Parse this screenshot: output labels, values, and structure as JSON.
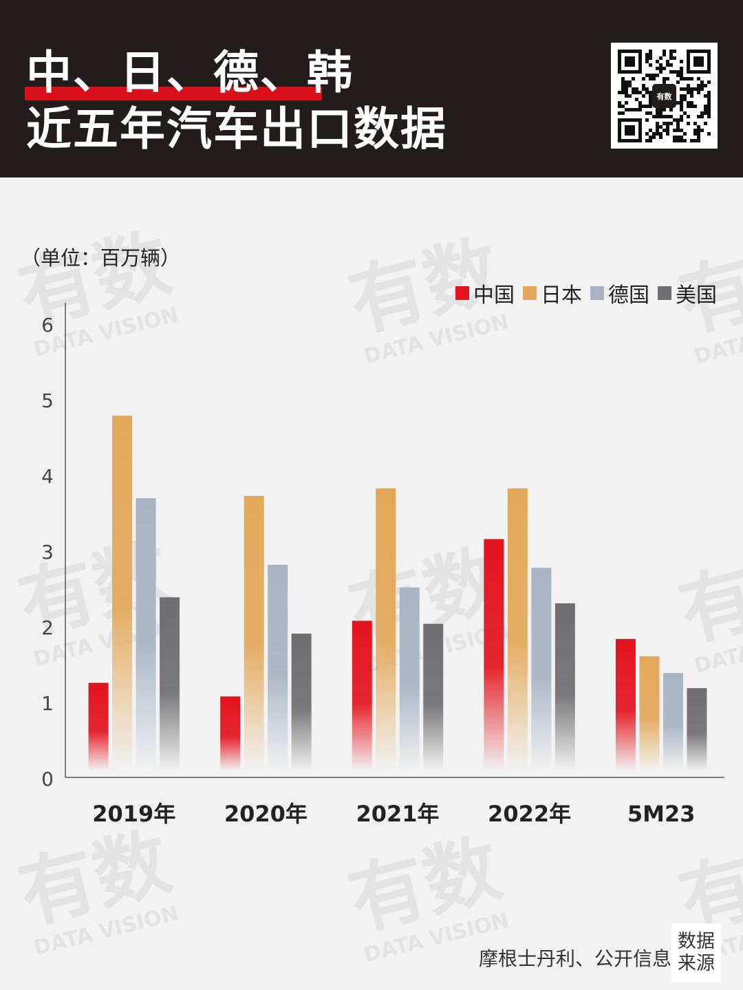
{
  "header": {
    "title_line1": "中、日、德、韩",
    "title_line2": "近五年汽车出口数据",
    "qr_badge": "有数"
  },
  "watermark": {
    "main": "有数",
    "sub": "DATA VISION"
  },
  "colors": {
    "header_bg": "#231c1c",
    "accent_red": "#d9101b",
    "china": "#e3141e",
    "japan": "#e3a85a",
    "germany": "#a8b4c4",
    "usa": "#6f6e70",
    "page_bg": "#f2f2f2"
  },
  "chart_data": {
    "type": "bar",
    "unit_label": "（单位：百万辆）",
    "categories": [
      "2019年",
      "2020年",
      "2021年",
      "2022年",
      "5M23"
    ],
    "series": [
      {
        "name": "中国",
        "values": [
          1.25,
          1.07,
          2.07,
          3.15,
          1.83
        ],
        "color": "#e3141e"
      },
      {
        "name": "日本",
        "values": [
          4.78,
          3.72,
          3.82,
          3.82,
          1.6
        ],
        "color": "#e3a85a"
      },
      {
        "name": "德国",
        "values": [
          3.69,
          2.81,
          2.51,
          2.77,
          1.38
        ],
        "color": "#a8b4c4"
      },
      {
        "name": "美国",
        "values": [
          2.38,
          1.9,
          2.03,
          2.3,
          1.18
        ],
        "color": "#6f6e70"
      }
    ],
    "yticks": [
      "0",
      "1",
      "2",
      "3",
      "4",
      "5",
      "6"
    ],
    "ylim": [
      0,
      6
    ],
    "legend_position": "top-right",
    "grid": false
  },
  "footer": {
    "source_text": "摩根士丹利、公开信息",
    "source_label_line1": "数据",
    "source_label_line2": "来源"
  }
}
